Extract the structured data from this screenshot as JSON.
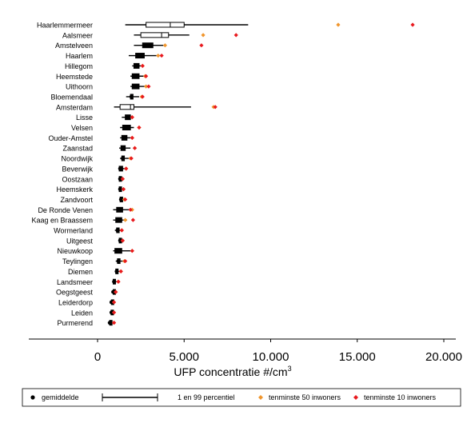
{
  "chart_data": {
    "type": "boxplot",
    "orientation": "horizontal",
    "title": "",
    "xlabel": "UFP concentratie #/cm³",
    "xlabel_base": "UFP concentratie #/cm",
    "xlabel_sup": "3",
    "xlim": [
      0,
      20000
    ],
    "xticks": [
      0,
      5000,
      10000,
      15000,
      20000
    ],
    "xtick_labels": [
      "0",
      "5.000",
      "10.000",
      "15.000",
      "20.000"
    ],
    "grid": false,
    "legend_position": "bottom",
    "legend": [
      {
        "key": "mean",
        "label": "gemiddelde",
        "marker": "black-dot"
      },
      {
        "key": "range",
        "label": "1 en 99 percentiel",
        "marker": "whisker-line"
      },
      {
        "key": "p50",
        "label": "tenminste 50 inwoners",
        "marker": "orange-diamond",
        "color": "#f0962d"
      },
      {
        "key": "p10",
        "label": "tenminste 10 inwoners",
        "marker": "red-diamond",
        "color": "#e8191e"
      }
    ],
    "colors": {
      "box": "#000000",
      "p50": "#f0962d",
      "p10": "#e8191e"
    },
    "municipalities": [
      {
        "name": "Haarlemmermeer",
        "p1": 1600,
        "q1": 2800,
        "median": 4200,
        "q3": 5000,
        "p99": 8700,
        "mean": null,
        "p50": 13900,
        "p10": 18200
      },
      {
        "name": "Aalsmeer",
        "p1": 2100,
        "q1": 2500,
        "median": 3700,
        "q3": 4100,
        "p99": 5300,
        "mean": null,
        "p50": 6100,
        "p10": 8000
      },
      {
        "name": "Amstelveen",
        "p1": 2100,
        "q1": 2600,
        "median": 3000,
        "q3": 3200,
        "p99": 3800,
        "mean": null,
        "p50": 3900,
        "p10": 6000
      },
      {
        "name": "Haarlem",
        "p1": 1800,
        "q1": 2200,
        "median": 2500,
        "q3": 2700,
        "p99": 3400,
        "mean": null,
        "p50": 3500,
        "p10": 3700
      },
      {
        "name": "Hillegom",
        "p1": 2000,
        "q1": 2100,
        "median": 2300,
        "q3": 2400,
        "p99": 2500,
        "mean": null,
        "p50": 2600,
        "p10": 2600
      },
      {
        "name": "Heemstede",
        "p1": 1900,
        "q1": 2000,
        "median": 2200,
        "q3": 2400,
        "p99": 2700,
        "mean": null,
        "p50": 2750,
        "p10": 2800
      },
      {
        "name": "Uithoorn",
        "p1": 1900,
        "q1": 2000,
        "median": 2200,
        "q3": 2400,
        "p99": 2800,
        "mean": null,
        "p50": 2800,
        "p10": 2950
      },
      {
        "name": "Bloemendaal",
        "p1": 1650,
        "q1": 1900,
        "median": 2000,
        "q3": 2050,
        "p99": 2400,
        "mean": 1950,
        "p50": 2550,
        "p10": 2600
      },
      {
        "name": "Amsterdam",
        "p1": 950,
        "q1": 1300,
        "median": 1900,
        "q3": 2100,
        "p99": 5400,
        "mean": null,
        "p50": 6700,
        "p10": 6800
      },
      {
        "name": "Lisse",
        "p1": 1400,
        "q1": 1600,
        "median": 1750,
        "q3": 1900,
        "p99": 2000,
        "mean": 1700,
        "p50": 2000,
        "p10": 2000
      },
      {
        "name": "Velsen",
        "p1": 1300,
        "q1": 1450,
        "median": 1700,
        "q3": 1900,
        "p99": 2100,
        "mean": 1650,
        "p50": 2400,
        "p10": 2400
      },
      {
        "name": "Ouder-Amstel",
        "p1": 1300,
        "q1": 1400,
        "median": 1600,
        "q3": 1700,
        "p99": 1900,
        "mean": 1550,
        "p50": 2000,
        "p10": 2000
      },
      {
        "name": "Zaanstad",
        "p1": 1250,
        "q1": 1350,
        "median": 1500,
        "q3": 1600,
        "p99": 1900,
        "mean": 1450,
        "p50": 2150,
        "p10": 2150
      },
      {
        "name": "Noordwijk",
        "p1": 1300,
        "q1": 1400,
        "median": 1500,
        "q3": 1550,
        "p99": 1800,
        "mean": 1450,
        "p50": 1900,
        "p10": 1950
      },
      {
        "name": "Beverwijk",
        "p1": 1200,
        "q1": 1250,
        "median": 1350,
        "q3": 1450,
        "p99": 1550,
        "mean": 1300,
        "p50": 1650,
        "p10": 1650
      },
      {
        "name": "Oostzaan",
        "p1": 1200,
        "q1": 1250,
        "median": 1300,
        "q3": 1350,
        "p99": 1400,
        "mean": 1300,
        "p50": 1450,
        "p10": 1450
      },
      {
        "name": "Heemskerk",
        "p1": 1200,
        "q1": 1250,
        "median": 1300,
        "q3": 1350,
        "p99": 1400,
        "mean": 1300,
        "p50": 1500,
        "p10": 1500
      },
      {
        "name": "Zandvoort",
        "p1": 1250,
        "q1": 1300,
        "median": 1400,
        "q3": 1450,
        "p99": 1550,
        "mean": 1350,
        "p50": 1550,
        "p10": 1600
      },
      {
        "name": "De Ronde Venen",
        "p1": 900,
        "q1": 1100,
        "median": 1300,
        "q3": 1450,
        "p99": 1900,
        "mean": 1250,
        "p50": 2000,
        "p10": 1900
      },
      {
        "name": "Kaag en Braassem",
        "p1": 900,
        "q1": 1050,
        "median": 1250,
        "q3": 1400,
        "p99": 1700,
        "mean": 1200,
        "p50": 1600,
        "p10": 2050
      },
      {
        "name": "Wormerland",
        "p1": 1000,
        "q1": 1100,
        "median": 1200,
        "q3": 1250,
        "p99": 1400,
        "mean": 1150,
        "p50": 1400,
        "p10": 1400
      },
      {
        "name": "Uitgeest",
        "p1": 1200,
        "q1": 1250,
        "median": 1300,
        "q3": 1350,
        "p99": 1400,
        "mean": 1300,
        "p50": 1450,
        "p10": 1450
      },
      {
        "name": "Nieuwkoop",
        "p1": 900,
        "q1": 1000,
        "median": 1200,
        "q3": 1400,
        "p99": 1900,
        "mean": 1150,
        "p50": 2000,
        "p10": 2000
      },
      {
        "name": "Teylingen",
        "p1": 1050,
        "q1": 1150,
        "median": 1250,
        "q3": 1300,
        "p99": 1500,
        "mean": 1200,
        "p50": 1550,
        "p10": 1600
      },
      {
        "name": "Diemen",
        "p1": 1000,
        "q1": 1050,
        "median": 1100,
        "q3": 1150,
        "p99": 1300,
        "mean": 1100,
        "p50": 1350,
        "p10": 1350
      },
      {
        "name": "Landsmeer",
        "p1": 850,
        "q1": 900,
        "median": 950,
        "q3": 1000,
        "p99": 1100,
        "mean": 950,
        "p50": 1200,
        "p10": 1200
      },
      {
        "name": "Oegstgeest",
        "p1": 850,
        "q1": 900,
        "median": 920,
        "q3": 950,
        "p99": 1000,
        "mean": 900,
        "p50": 1050,
        "p10": 1050
      },
      {
        "name": "Leiderdorp",
        "p1": 750,
        "q1": 800,
        "median": 830,
        "q3": 860,
        "p99": 900,
        "mean": 800,
        "p50": 950,
        "p10": 950
      },
      {
        "name": "Leiden",
        "p1": 750,
        "q1": 780,
        "median": 810,
        "q3": 840,
        "p99": 900,
        "mean": 800,
        "p50": 950,
        "p10": 950
      },
      {
        "name": "Purmerend",
        "p1": 650,
        "q1": 700,
        "median": 750,
        "q3": 800,
        "p99": 900,
        "mean": 700,
        "p50": 950,
        "p10": 950
      }
    ]
  }
}
